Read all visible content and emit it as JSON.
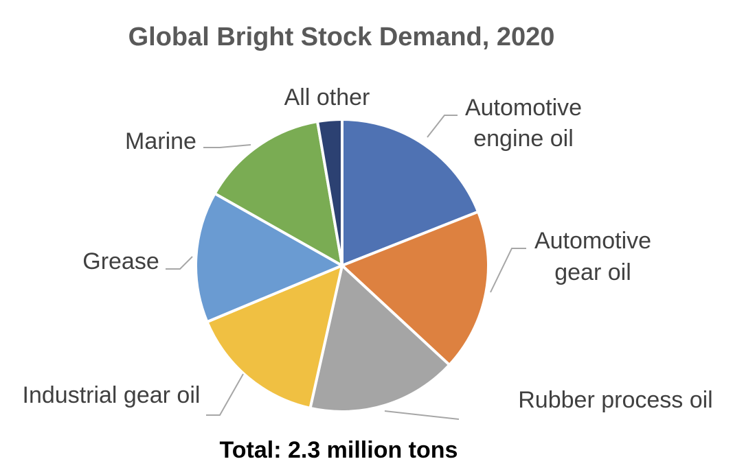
{
  "chart_data": {
    "type": "pie",
    "title": "Global Bright Stock Demand, 2020",
    "footer": "Total: 2.3 million tons",
    "start_angle_deg": 0,
    "direction": "clockwise",
    "legend": "none",
    "slices": [
      {
        "label": [
          "Automotive",
          "engine oil"
        ],
        "value": 19.0,
        "color": "#4F72B3"
      },
      {
        "label": [
          "Automotive",
          "gear oil"
        ],
        "value": 17.9,
        "color": "#DD8140"
      },
      {
        "label": [
          "Rubber process oil"
        ],
        "value": 16.6,
        "color": "#A5A5A5"
      },
      {
        "label": [
          "Industrial gear oil"
        ],
        "value": 15.2,
        "color": "#F0C042"
      },
      {
        "label": [
          "Grease"
        ],
        "value": 14.5,
        "color": "#6A9BD2"
      },
      {
        "label": [
          "Marine"
        ],
        "value": 14.1,
        "color": "#7AAC53"
      },
      {
        "label": [
          "All other"
        ],
        "value": 2.7,
        "color": "#2C4172"
      }
    ]
  }
}
